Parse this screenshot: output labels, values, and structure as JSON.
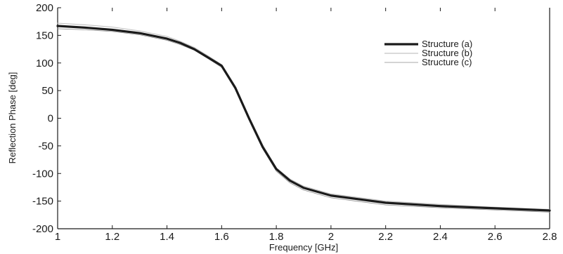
{
  "chart_data": {
    "type": "line",
    "title": "",
    "xlabel": "Frequency [GHz]",
    "ylabel": "Reflection Phase [deg]",
    "xlim": [
      1.0,
      2.8
    ],
    "ylim": [
      -200,
      200
    ],
    "xticks": [
      1,
      1.2,
      1.4,
      1.6,
      1.8,
      2,
      2.2,
      2.4,
      2.6,
      2.8
    ],
    "xtick_labels": [
      "1",
      "1.2",
      "1.4",
      "1.6",
      "1.8",
      "2",
      "2.2",
      "2.4",
      "2.6",
      "2.8"
    ],
    "yticks": [
      200,
      150,
      100,
      50,
      0,
      -50,
      -100,
      -150,
      -200
    ],
    "ytick_labels": [
      "200",
      "150",
      "100",
      "50",
      "0",
      "-50",
      "-100",
      "-150",
      "-200"
    ],
    "grid": false,
    "legend_position": "top-right",
    "colors": {
      "structure_a": "#1a1a1a",
      "structure_b": "#c4c4c4",
      "structure_c": "#8c8c8c"
    },
    "series": [
      {
        "name": "Structure (a)",
        "x": [
          1.0,
          1.1,
          1.2,
          1.3,
          1.4,
          1.45,
          1.5,
          1.55,
          1.6,
          1.65,
          1.7,
          1.75,
          1.8,
          1.85,
          1.9,
          2.0,
          2.2,
          2.4,
          2.6,
          2.8
        ],
        "y": [
          167,
          164,
          160,
          154,
          144,
          136,
          125,
          110,
          95,
          55,
          0,
          -52,
          -92,
          -113,
          -126,
          -140,
          -153,
          -159,
          -163,
          -167
        ]
      },
      {
        "name": "Structure (b)",
        "x": [
          1.0,
          1.1,
          1.2,
          1.3,
          1.4,
          1.45,
          1.5,
          1.55,
          1.6,
          1.65,
          1.7,
          1.75,
          1.8,
          1.85,
          1.9,
          2.0,
          2.2,
          2.4,
          2.6,
          2.8
        ],
        "y": [
          172,
          169,
          165,
          158,
          148,
          139,
          128,
          113,
          97,
          58,
          3,
          -48,
          -90,
          -110,
          -123,
          -137,
          -150,
          -156,
          -161,
          -165
        ]
      },
      {
        "name": "Structure (c)",
        "x": [
          1.0,
          1.1,
          1.2,
          1.3,
          1.4,
          1.45,
          1.5,
          1.55,
          1.6,
          1.65,
          1.7,
          1.75,
          1.8,
          1.85,
          1.9,
          2.0,
          2.2,
          2.4,
          2.6,
          2.8
        ],
        "y": [
          162,
          160,
          157,
          151,
          141,
          133,
          123,
          108,
          92,
          52,
          -3,
          -55,
          -96,
          -117,
          -130,
          -144,
          -157,
          -162,
          -166,
          -170
        ]
      }
    ]
  }
}
